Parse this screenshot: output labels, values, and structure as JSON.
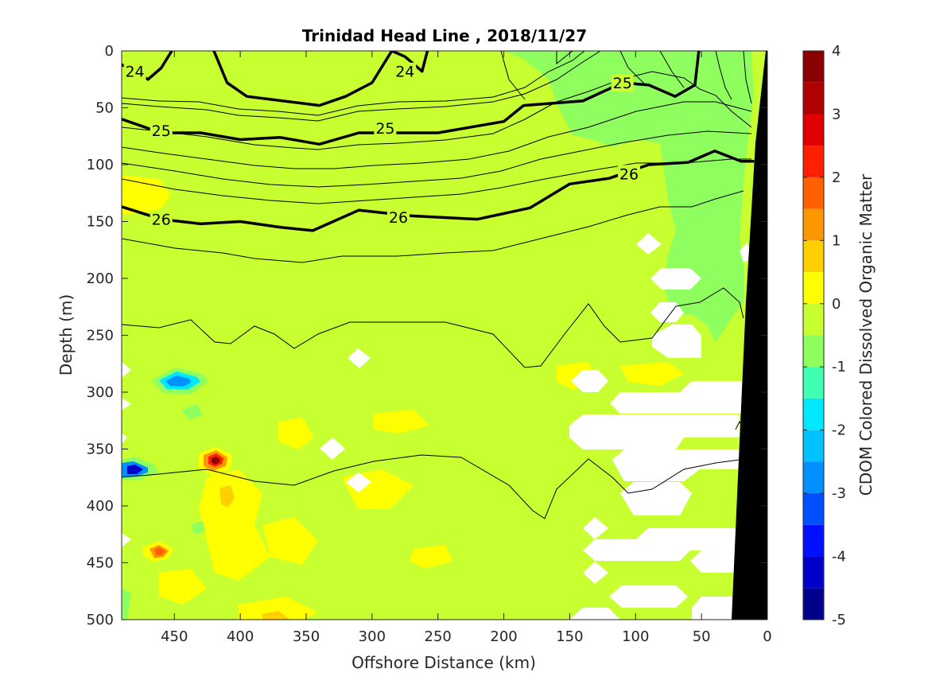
{
  "chart_data": {
    "type": "heatmap",
    "title": "Trinidad Head Line , 2018/11/27",
    "xlabel": "Offshore Distance (km)",
    "ylabel": "Depth (m)",
    "xlim": [
      490,
      0
    ],
    "ylim": [
      0,
      500
    ],
    "x_ticks": [
      450,
      400,
      350,
      300,
      250,
      200,
      150,
      100,
      50,
      0
    ],
    "y_ticks": [
      0,
      50,
      100,
      150,
      200,
      250,
      300,
      350,
      400,
      450,
      500
    ],
    "colorbar": {
      "label": "CDOM Colored Dissolved Organic Matter",
      "range": [
        -5,
        4
      ],
      "ticks": [
        4,
        3,
        2,
        1,
        0,
        -1,
        -2,
        -3,
        -4,
        -5
      ],
      "levels": [
        -5,
        -4.5,
        -4,
        -3.5,
        -3,
        -2.5,
        -2,
        -1.5,
        -1,
        -0.5,
        0,
        0.5,
        1,
        1.5,
        2,
        2.5,
        3,
        3.5,
        4
      ],
      "colors": [
        "#00008b",
        "#0000c8",
        "#0010ff",
        "#0050ff",
        "#0090ff",
        "#00c0ff",
        "#00e8ff",
        "#40ffb0",
        "#8fff60",
        "#c8ff30",
        "#ffff00",
        "#ffd000",
        "#ff9800",
        "#ff6000",
        "#ff2000",
        "#e00000",
        "#b00000",
        "#8b0000"
      ]
    },
    "background_level_value": -0.25,
    "field_regions": [
      {
        "label": "nearshore lower-CDOM patch",
        "value": -0.75,
        "x": [
          150,
          0
        ],
        "depth": [
          0,
          280
        ]
      },
      {
        "label": "offshore low-CDOM spot",
        "value": -2.5,
        "x": 450,
        "depth": 290
      },
      {
        "label": "offshore minimum spot",
        "value": -4.5,
        "x": 480,
        "depth": 370
      },
      {
        "label": "high-CDOM spot",
        "value": 3.5,
        "x": 420,
        "depth": 360
      },
      {
        "label": "high-CDOM spot",
        "value": 2.0,
        "x": 460,
        "depth": 440
      },
      {
        "label": "elevated CDOM spot",
        "value": 1.0,
        "x": 415,
        "depth": 392
      }
    ],
    "density_contours": [
      {
        "value": 24,
        "labels": [
          "24",
          "24"
        ],
        "label_positions": [
          [
            480,
            18
          ],
          [
            275,
            18
          ]
        ],
        "points": [
          [
            490,
            12
          ],
          [
            470,
            25
          ],
          [
            460,
            15
          ],
          [
            452,
            0
          ],
          null,
          [
            420,
            0
          ],
          [
            410,
            28
          ],
          [
            395,
            40
          ],
          [
            340,
            48
          ],
          [
            320,
            40
          ],
          [
            300,
            28
          ],
          [
            285,
            0
          ],
          [
            275,
            5
          ],
          [
            262,
            18
          ],
          [
            258,
            0
          ]
        ]
      },
      {
        "value": 25,
        "labels": [
          "25",
          "25",
          "25"
        ],
        "label_positions": [
          [
            460,
            70
          ],
          [
            290,
            68
          ],
          [
            110,
            28
          ]
        ],
        "points": [
          [
            490,
            60
          ],
          [
            460,
            72
          ],
          [
            430,
            72
          ],
          [
            400,
            78
          ],
          [
            370,
            76
          ],
          [
            340,
            82
          ],
          [
            310,
            72
          ],
          [
            250,
            72
          ],
          [
            200,
            62
          ],
          [
            185,
            48
          ],
          [
            140,
            44
          ],
          [
            110,
            28
          ],
          [
            90,
            30
          ],
          [
            70,
            40
          ],
          [
            55,
            30
          ],
          [
            52,
            0
          ]
        ]
      },
      {
        "value": 26,
        "labels": [
          "26",
          "26",
          "26"
        ],
        "label_positions": [
          [
            460,
            148
          ],
          [
            280,
            146
          ],
          [
            105,
            108
          ]
        ],
        "points": [
          [
            490,
            137
          ],
          [
            460,
            148
          ],
          [
            430,
            152
          ],
          [
            400,
            150
          ],
          [
            370,
            155
          ],
          [
            345,
            158
          ],
          [
            310,
            140
          ],
          [
            270,
            145
          ],
          [
            220,
            148
          ],
          [
            180,
            138
          ],
          [
            150,
            117
          ],
          [
            120,
            112
          ],
          [
            90,
            100
          ],
          [
            60,
            98
          ],
          [
            40,
            88
          ],
          [
            20,
            97
          ],
          [
            10,
            97
          ]
        ]
      }
    ]
  }
}
